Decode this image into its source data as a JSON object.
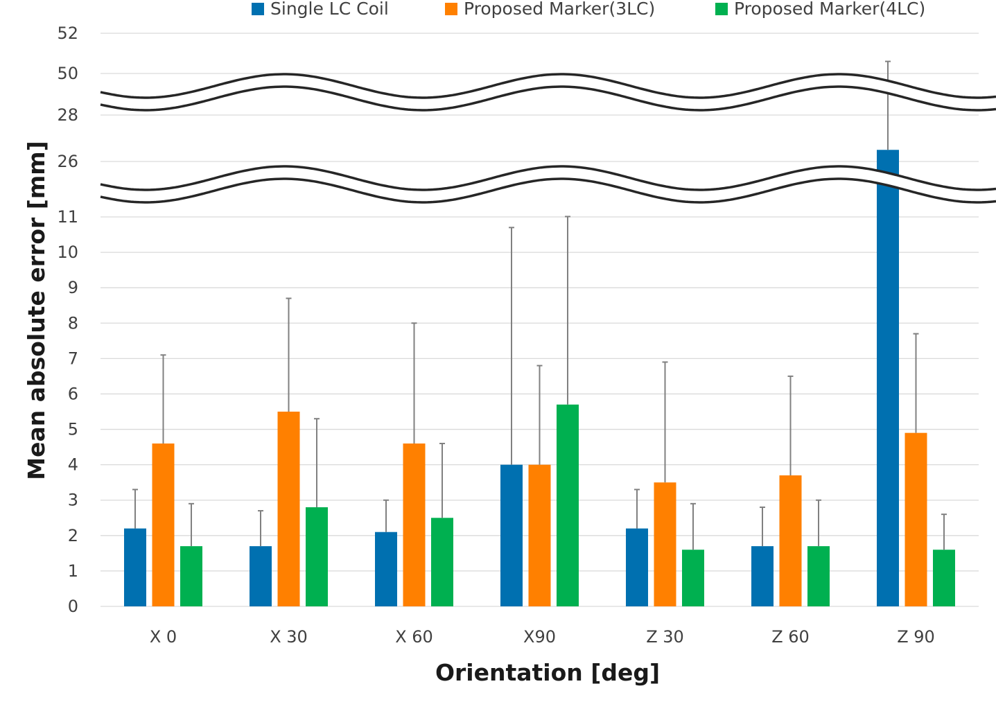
{
  "chart_data": {
    "type": "bar",
    "xlabel": "Orientation [deg]",
    "ylabel": "Mean absolute error [mm]",
    "categories": [
      "X 0",
      "X 30",
      "X 60",
      "X90",
      "Z 30",
      "Z 60",
      "Z 90"
    ],
    "y_ticks": [
      "0",
      "1",
      "2",
      "3",
      "4",
      "5",
      "6",
      "7",
      "8",
      "9",
      "10",
      "11",
      "26",
      "28",
      "50",
      "52"
    ],
    "axis_breaks": [
      [
        11,
        26
      ],
      [
        28,
        50
      ]
    ],
    "grid": true,
    "legend_position": "top",
    "series": [
      {
        "name": "Single LC Coil",
        "color": "#0070b0",
        "values": [
          2.2,
          1.7,
          2.1,
          4.0,
          2.2,
          1.7,
          26.5
        ],
        "error_upper": [
          3.3,
          2.7,
          3.0,
          10.7,
          3.3,
          2.8,
          50.6
        ]
      },
      {
        "name": "Proposed Marker(3LC)",
        "color": "#ff8000",
        "values": [
          4.6,
          5.5,
          4.6,
          4.0,
          3.5,
          3.7,
          4.9
        ],
        "error_upper": [
          7.1,
          8.7,
          8.0,
          6.8,
          6.9,
          6.5,
          7.7
        ]
      },
      {
        "name": "Proposed Marker(4LC)",
        "color": "#00b050",
        "values": [
          1.7,
          2.8,
          2.5,
          5.7,
          1.6,
          1.7,
          1.6
        ],
        "error_upper": [
          2.9,
          5.3,
          4.6,
          11.1,
          2.9,
          3.0,
          2.6
        ]
      }
    ]
  }
}
